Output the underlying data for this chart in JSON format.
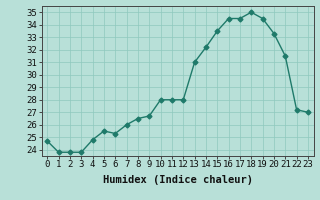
{
  "x": [
    0,
    1,
    2,
    3,
    4,
    5,
    6,
    7,
    8,
    9,
    10,
    11,
    12,
    13,
    14,
    15,
    16,
    17,
    18,
    19,
    20,
    21,
    22,
    23
  ],
  "y": [
    24.7,
    23.8,
    23.8,
    23.8,
    24.8,
    25.5,
    25.3,
    26.0,
    26.5,
    26.7,
    28.0,
    28.0,
    28.0,
    31.0,
    32.2,
    33.5,
    34.5,
    34.5,
    35.0,
    34.5,
    33.3,
    31.5,
    27.2,
    27.0
  ],
  "line_color": "#1f7a6a",
  "marker": "D",
  "marker_size": 2.5,
  "bg_color": "#b8e0d8",
  "grid_color": "#8fc8be",
  "xlabel": "Humidex (Indice chaleur)",
  "ylim": [
    23.5,
    35.5
  ],
  "xlim": [
    -0.5,
    23.5
  ],
  "yticks": [
    24,
    25,
    26,
    27,
    28,
    29,
    30,
    31,
    32,
    33,
    34,
    35
  ],
  "xticks": [
    0,
    1,
    2,
    3,
    4,
    5,
    6,
    7,
    8,
    9,
    10,
    11,
    12,
    13,
    14,
    15,
    16,
    17,
    18,
    19,
    20,
    21,
    22,
    23
  ],
  "xlabel_fontsize": 7.5,
  "tick_fontsize": 6.5,
  "line_width": 1.0
}
